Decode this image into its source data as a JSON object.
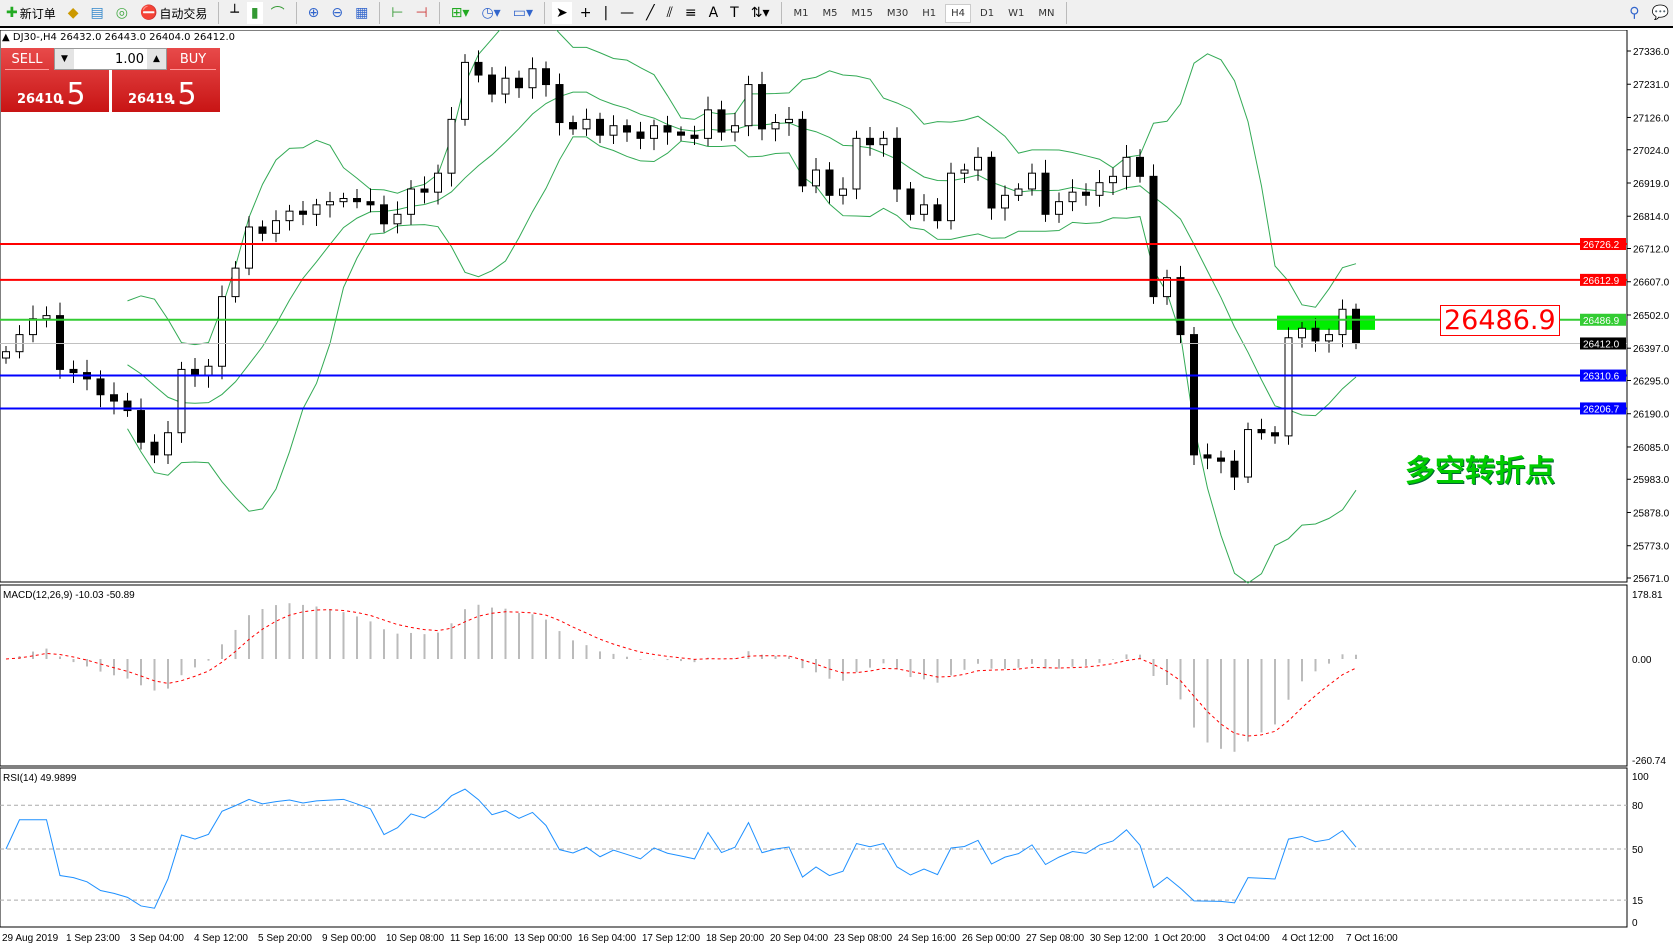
{
  "toolbar": {
    "new_order": "新订单",
    "auto_trading": "自动交易",
    "timeframes": [
      "M1",
      "M5",
      "M15",
      "M30",
      "H1",
      "H4",
      "D1",
      "W1",
      "MN"
    ],
    "active_timeframe": "H4"
  },
  "symbol": {
    "header": "DJ30-,H4  26432.0 26443.0 26404.0 26412.0"
  },
  "trade_panel": {
    "sell_label": "SELL",
    "buy_label": "BUY",
    "lot": "1.00",
    "sell_price": "26410",
    "sell_big": ".5",
    "buy_price": "26419",
    "buy_big": ".5"
  },
  "annotation": {
    "text": "多空转折点",
    "price_box": "26486.9",
    "color": "#00cc00"
  },
  "chart_data": {
    "type": "candlestick",
    "symbol": "DJ30-",
    "timeframe": "H4",
    "close": [
      26386,
      26440,
      26490,
      26500,
      26330,
      26320,
      26300,
      26250,
      26230,
      26200,
      26100,
      26060,
      26130,
      26330,
      26310,
      26340,
      26560,
      26650,
      26780,
      26760,
      26800,
      26830,
      26820,
      26850,
      26860,
      26870,
      26860,
      26850,
      26790,
      26820,
      26900,
      26890,
      26950,
      27120,
      27300,
      27260,
      27200,
      27250,
      27220,
      27280,
      27230,
      27110,
      27090,
      27120,
      27070,
      27100,
      27080,
      27060,
      27100,
      27080,
      27070,
      27060,
      27150,
      27080,
      27100,
      27230,
      27090,
      27110,
      27120,
      26910,
      26960,
      26880,
      26900,
      27060,
      27040,
      27060,
      26900,
      26820,
      26850,
      26800,
      26950,
      26960,
      27000,
      26840,
      26880,
      26900,
      26950,
      26820,
      26860,
      26890,
      26880,
      26920,
      26940,
      27000,
      26940,
      26560,
      26620,
      26440,
      26060,
      26050,
      26040,
      25990,
      26140,
      26130,
      26120,
      26430,
      26460,
      26420,
      26440,
      26520,
      26412
    ],
    "price_ticks": [
      "27336.0",
      "27231.0",
      "27126.0",
      "27024.0",
      "26919.0",
      "26814.0",
      "26712.0",
      "26607.0",
      "26502.0",
      "26397.0",
      "26295.0",
      "26190.0",
      "26085.0",
      "25983.0",
      "25878.0",
      "25773.0",
      "25671.0"
    ],
    "price_range": [
      25671,
      27336
    ],
    "levels": [
      {
        "price": "26726.2",
        "color": "#ff0000"
      },
      {
        "price": "26612.9",
        "color": "#ff0000"
      },
      {
        "price": "26486.9",
        "color": "#33cc33"
      },
      {
        "price": "26412.0",
        "color": "#000000"
      },
      {
        "price": "26310.6",
        "color": "#0000ff"
      },
      {
        "price": "26206.7",
        "color": "#0000ff"
      }
    ],
    "zone": {
      "from": 26455,
      "to": 26500,
      "color": "#00ee00"
    },
    "bollinger_color": "#33aa55",
    "time_ticks": [
      "29 Aug 2019",
      "1 Sep 23:00",
      "3 Sep 04:00",
      "4 Sep 12:00",
      "5 Sep 20:00",
      "9 Sep 00:00",
      "10 Sep 08:00",
      "11 Sep 16:00",
      "13 Sep 00:00",
      "16 Sep 04:00",
      "17 Sep 12:00",
      "18 Sep 20:00",
      "20 Sep 04:00",
      "23 Sep 08:00",
      "24 Sep 16:00",
      "26 Sep 00:00",
      "27 Sep 08:00",
      "30 Sep 12:00",
      "1 Oct 20:00",
      "3 Oct 04:00",
      "4 Oct 12:00",
      "7 Oct 16:00"
    ],
    "macd": {
      "label": "MACD(12,26,9) -10.03 -50.89",
      "ticks": [
        "178.81",
        "0.00",
        "-260.74"
      ],
      "range": [
        -260.74,
        178.81
      ]
    },
    "rsi": {
      "label": "RSI(14) 49.9899",
      "ticks": [
        "100",
        "80",
        "50",
        "15",
        "0"
      ],
      "levels": [
        80,
        50,
        15
      ],
      "color": "#1e90ff"
    }
  }
}
